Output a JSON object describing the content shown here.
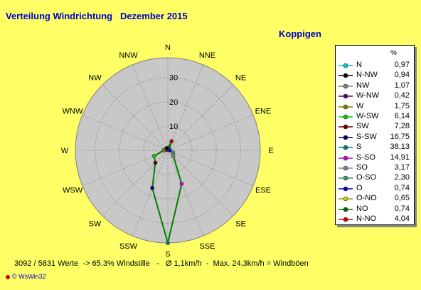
{
  "title": "Verteilung Windrichtung   Dezember 2015",
  "station": "Koppigen",
  "legend_unit": "%",
  "chart_data": {
    "type": "radar",
    "title": "Verteilung Windrichtung   Dezember 2015",
    "rings": [
      10,
      20,
      30
    ],
    "rmax": 38.13,
    "directions": [
      "N",
      "NNE",
      "NE",
      "ENE",
      "E",
      "ESE",
      "SE",
      "SSE",
      "S",
      "SSW",
      "SW",
      "WSW",
      "W",
      "WNW",
      "NW",
      "NNW"
    ],
    "series_color": "#008000",
    "points": [
      {
        "dir": "N",
        "label": "N",
        "value": 0.97,
        "color": "#00cccc"
      },
      {
        "dir": "NNW",
        "label": "N-NW",
        "value": 0.94,
        "color": "#000000"
      },
      {
        "dir": "NW",
        "label": "NW",
        "value": 1.07,
        "color": "#808080"
      },
      {
        "dir": "WNW",
        "label": "W-NW",
        "value": 0.42,
        "color": "#660066"
      },
      {
        "dir": "W",
        "label": "W",
        "value": 1.75,
        "color": "#808000"
      },
      {
        "dir": "WSW",
        "label": "W-SW",
        "value": 6.14,
        "color": "#00cc00"
      },
      {
        "dir": "SW",
        "label": "SW",
        "value": 7.28,
        "color": "#660000"
      },
      {
        "dir": "SSW",
        "label": "S-SW",
        "value": 16.75,
        "color": "#000066"
      },
      {
        "dir": "S",
        "label": "S",
        "value": 38.13,
        "color": "#008080"
      },
      {
        "dir": "SSE",
        "label": "S-SO",
        "value": 14.91,
        "color": "#cc00cc"
      },
      {
        "dir": "SE",
        "label": "SO",
        "value": 3.17,
        "color": "#808080"
      },
      {
        "dir": "ESE",
        "label": "O-SO",
        "value": 2.3,
        "color": "#339966"
      },
      {
        "dir": "E",
        "label": "O",
        "value": 0.74,
        "color": "#0000cc"
      },
      {
        "dir": "ENE",
        "label": "O-NO",
        "value": 0.65,
        "color": "#cccc00"
      },
      {
        "dir": "NE",
        "label": "NO",
        "value": 0.74,
        "color": "#006600"
      },
      {
        "dir": "NNE",
        "label": "N-NO",
        "value": 4.04,
        "color": "#cc0000"
      }
    ]
  },
  "legend": [
    {
      "name": "N",
      "value": "0,97",
      "color": "#00cccc"
    },
    {
      "name": "N-NW",
      "value": "0,94",
      "color": "#000000"
    },
    {
      "name": "NW",
      "value": "1,07",
      "color": "#808080"
    },
    {
      "name": "W-NW",
      "value": "0,42",
      "color": "#660066"
    },
    {
      "name": "W",
      "value": "1,75",
      "color": "#808000"
    },
    {
      "name": "W-SW",
      "value": "6,14",
      "color": "#00cc00"
    },
    {
      "name": "SW",
      "value": "7,28",
      "color": "#660000"
    },
    {
      "name": "S-SW",
      "value": "16,75",
      "color": "#000066"
    },
    {
      "name": "S",
      "value": "38,13",
      "color": "#008080"
    },
    {
      "name": "S-SO",
      "value": "14,91",
      "color": "#cc00cc"
    },
    {
      "name": "SO",
      "value": "3,17",
      "color": "#808080"
    },
    {
      "name": "O-SO",
      "value": "2,30",
      "color": "#339966"
    },
    {
      "name": "O",
      "value": "0,74",
      "color": "#0000cc"
    },
    {
      "name": "O-NO",
      "value": "0,65",
      "color": "#cccc00"
    },
    {
      "name": "NO",
      "value": "0,74",
      "color": "#006600"
    },
    {
      "name": "N-NO",
      "value": "4,04",
      "color": "#cc0000"
    }
  ],
  "footer": "3092 / 5831 Werte  -> 65.3% Windstille   -   Ø 1,1km/h  -  Max. 24,3km/h = Windböen",
  "copyright": "© WsWin32"
}
